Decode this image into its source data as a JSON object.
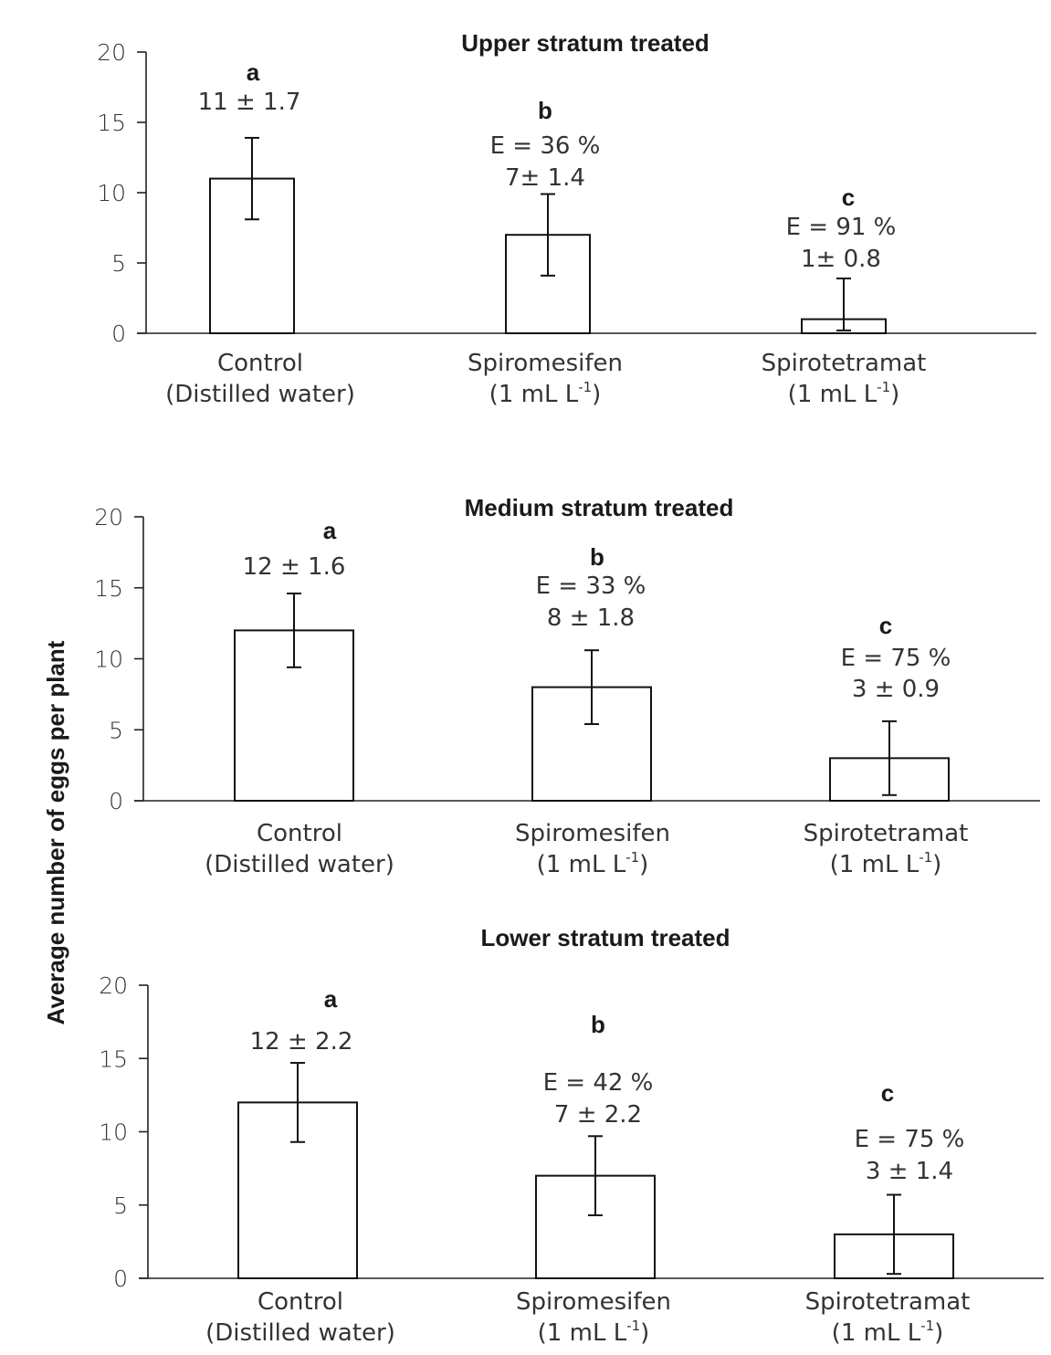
{
  "chart_data": [
    {
      "type": "bar",
      "title": "Upper stratum treated",
      "categories": [
        {
          "line1": "Control",
          "line2": "(Distilled water)"
        },
        {
          "line1": "Spiromesifen",
          "line2_pre": "(1 mL L",
          "line2_sup": "-1",
          "line2_post": ")"
        },
        {
          "line1": "Spirotetramat",
          "line2_pre": "(1 mL L",
          "line2_sup": "-1",
          "line2_post": ")"
        }
      ],
      "values": [
        11,
        7,
        1
      ],
      "errors": [
        2.9,
        2.9,
        2.9
      ],
      "letters": [
        "a",
        "b",
        "c"
      ],
      "efficacy": [
        "",
        "E = 36 %",
        "E = 91 %"
      ],
      "value_labels": [
        "11 ± 1.7",
        "7± 1.4",
        "1± 0.8"
      ],
      "ylim": [
        0,
        20
      ],
      "yticks": [
        "0",
        "5",
        "10",
        "15",
        "20"
      ],
      "ylabel": "Average number of eggs per plant",
      "xlabel": ""
    },
    {
      "type": "bar",
      "title": "Medium stratum treated",
      "categories": [
        {
          "line1": "Control",
          "line2": "(Distilled water)"
        },
        {
          "line1": "Spiromesifen",
          "line2_pre": "(1 mL L",
          "line2_sup": "-1",
          "line2_post": ")"
        },
        {
          "line1": "Spirotetramat",
          "line2_pre": "(1 mL L",
          "line2_sup": "-1",
          "line2_post": ")"
        }
      ],
      "values": [
        12,
        8,
        3
      ],
      "errors": [
        2.6,
        2.6,
        2.6
      ],
      "letters": [
        "a",
        "b",
        "c"
      ],
      "efficacy": [
        "",
        "E = 33 %",
        "E = 75 %"
      ],
      "value_labels": [
        "12 ± 1.6",
        "8 ± 1.8",
        "3 ± 0.9"
      ],
      "ylim": [
        0,
        20
      ],
      "yticks": [
        "0",
        "5",
        "10",
        "15",
        "20"
      ],
      "ylabel": "Average number of eggs per plant",
      "xlabel": ""
    },
    {
      "type": "bar",
      "title": "Lower stratum treated",
      "categories": [
        {
          "line1": "Control",
          "line2": "(Distilled water)"
        },
        {
          "line1": "Spiromesifen",
          "line2_pre": "(1 mL L",
          "line2_sup": "-1",
          "line2_post": ")"
        },
        {
          "line1": "Spirotetramat",
          "line2_pre": "(1 mL L",
          "line2_sup": "-1",
          "line2_post": ")"
        }
      ],
      "values": [
        12,
        7,
        3
      ],
      "errors": [
        2.7,
        2.7,
        2.7
      ],
      "letters": [
        "a",
        "b",
        "c"
      ],
      "efficacy": [
        "",
        "E = 42 %",
        "E = 75 %"
      ],
      "value_labels": [
        "12 ± 2.2",
        "7 ± 2.2",
        "3 ± 1.4"
      ],
      "ylim": [
        0,
        20
      ],
      "yticks": [
        "0",
        "5",
        "10",
        "15",
        "20"
      ],
      "ylabel": "Average number of eggs per plant",
      "xlabel": ""
    }
  ],
  "ylabel": "Average number of eggs per plant"
}
